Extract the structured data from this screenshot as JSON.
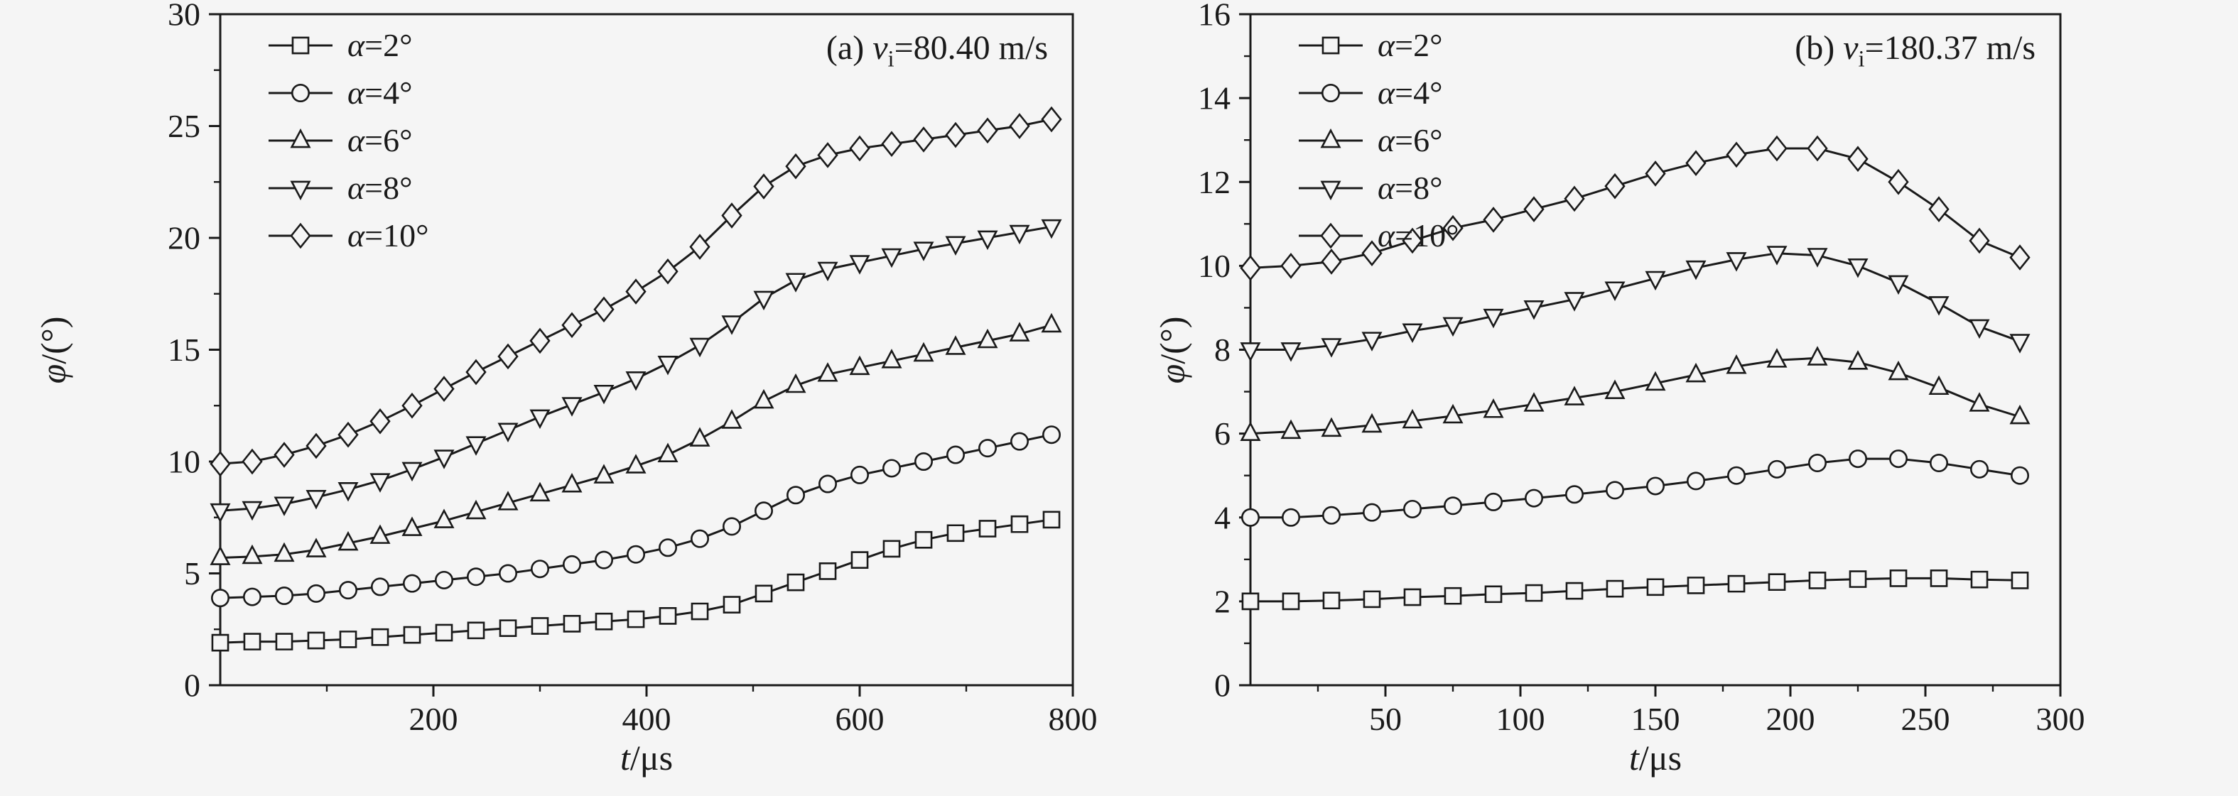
{
  "style": {
    "background": "#f5f5f5",
    "line_color": "#1a1a1a",
    "axis_color": "#1a1a1a",
    "marker_fill": "#f5f5f5"
  },
  "chart_data": [
    {
      "type": "line",
      "annotation": {
        "prefix": "(a) ",
        "var": "v",
        "sub": "i",
        "rest": "=80.40 m/s"
      },
      "xlabel": {
        "it": "t",
        "rest": "/μs"
      },
      "ylabel": {
        "it": "φ",
        "rest": "/(°)"
      },
      "xlim": [
        0,
        800
      ],
      "ylim": [
        0,
        30
      ],
      "xticks": [
        200,
        400,
        600,
        800
      ],
      "yticks": [
        0,
        5,
        10,
        15,
        20,
        25,
        30
      ],
      "xminor_step": 100,
      "yminor_step": 2.5,
      "grid": false,
      "legend_position": "top-left",
      "x": [
        0,
        30,
        60,
        90,
        120,
        150,
        180,
        210,
        240,
        270,
        300,
        330,
        360,
        390,
        420,
        450,
        480,
        510,
        540,
        570,
        600,
        630,
        660,
        690,
        720,
        750,
        780
      ],
      "series": [
        {
          "name": "α=2°",
          "marker": "square",
          "y": [
            1.9,
            1.95,
            1.95,
            2.0,
            2.05,
            2.15,
            2.25,
            2.35,
            2.45,
            2.55,
            2.65,
            2.75,
            2.85,
            2.95,
            3.1,
            3.3,
            3.6,
            4.1,
            4.6,
            5.1,
            5.6,
            6.1,
            6.5,
            6.8,
            7.0,
            7.2,
            7.4
          ]
        },
        {
          "name": "α=4°",
          "marker": "circle",
          "y": [
            3.9,
            3.95,
            4.0,
            4.1,
            4.25,
            4.4,
            4.55,
            4.7,
            4.85,
            5.0,
            5.2,
            5.4,
            5.6,
            5.85,
            6.15,
            6.55,
            7.1,
            7.8,
            8.5,
            9.0,
            9.4,
            9.7,
            10.0,
            10.3,
            10.6,
            10.9,
            11.2
          ]
        },
        {
          "name": "α=6°",
          "marker": "triangle-up",
          "y": [
            5.7,
            5.75,
            5.85,
            6.05,
            6.35,
            6.65,
            7.0,
            7.35,
            7.75,
            8.15,
            8.55,
            8.95,
            9.35,
            9.8,
            10.3,
            11.0,
            11.8,
            12.7,
            13.4,
            13.9,
            14.2,
            14.5,
            14.8,
            15.1,
            15.4,
            15.7,
            16.1
          ]
        },
        {
          "name": "α=8°",
          "marker": "triangle-down",
          "y": [
            7.8,
            7.9,
            8.1,
            8.4,
            8.75,
            9.15,
            9.65,
            10.2,
            10.8,
            11.4,
            12.0,
            12.55,
            13.1,
            13.7,
            14.4,
            15.2,
            16.2,
            17.3,
            18.1,
            18.6,
            18.9,
            19.2,
            19.5,
            19.75,
            20.0,
            20.25,
            20.5
          ]
        },
        {
          "name": "α=10°",
          "marker": "diamond",
          "y": [
            9.9,
            10.0,
            10.3,
            10.7,
            11.2,
            11.8,
            12.5,
            13.25,
            14.0,
            14.7,
            15.4,
            16.1,
            16.8,
            17.6,
            18.5,
            19.6,
            21.0,
            22.3,
            23.2,
            23.7,
            24.0,
            24.2,
            24.4,
            24.6,
            24.8,
            25.0,
            25.3
          ]
        }
      ]
    },
    {
      "type": "line",
      "annotation": {
        "prefix": "(b) ",
        "var": "v",
        "sub": "i",
        "rest": "=180.37 m/s"
      },
      "xlabel": {
        "it": "t",
        "rest": "/μs"
      },
      "ylabel": {
        "it": "φ",
        "rest": "/(°)"
      },
      "xlim": [
        0,
        300
      ],
      "ylim": [
        0,
        16
      ],
      "xticks": [
        50,
        100,
        150,
        200,
        250,
        300
      ],
      "yticks": [
        0,
        2,
        4,
        6,
        8,
        10,
        12,
        14,
        16
      ],
      "xminor_step": 25,
      "yminor_step": 1,
      "grid": false,
      "legend_position": "top-left",
      "x": [
        0,
        15,
        30,
        45,
        60,
        75,
        90,
        105,
        120,
        135,
        150,
        165,
        180,
        195,
        210,
        225,
        240,
        255,
        270,
        285
      ],
      "series": [
        {
          "name": "α=2°",
          "marker": "square",
          "y": [
            2.0,
            2.0,
            2.02,
            2.05,
            2.1,
            2.13,
            2.17,
            2.2,
            2.25,
            2.3,
            2.34,
            2.38,
            2.42,
            2.46,
            2.5,
            2.53,
            2.55,
            2.55,
            2.52,
            2.5
          ]
        },
        {
          "name": "α=4°",
          "marker": "circle",
          "y": [
            4.0,
            4.0,
            4.05,
            4.12,
            4.2,
            4.28,
            4.37,
            4.46,
            4.55,
            4.65,
            4.75,
            4.87,
            5.0,
            5.15,
            5.3,
            5.4,
            5.4,
            5.3,
            5.15,
            5.0
          ]
        },
        {
          "name": "α=6°",
          "marker": "triangle-up",
          "y": [
            6.0,
            6.05,
            6.1,
            6.2,
            6.3,
            6.42,
            6.55,
            6.7,
            6.85,
            7.0,
            7.2,
            7.4,
            7.6,
            7.75,
            7.8,
            7.7,
            7.45,
            7.1,
            6.7,
            6.4
          ]
        },
        {
          "name": "α=8°",
          "marker": "triangle-down",
          "y": [
            8.0,
            8.0,
            8.1,
            8.25,
            8.45,
            8.6,
            8.8,
            9.0,
            9.2,
            9.45,
            9.7,
            9.95,
            10.15,
            10.3,
            10.25,
            10.0,
            9.6,
            9.1,
            8.55,
            8.2
          ]
        },
        {
          "name": "α=10°",
          "marker": "diamond",
          "y": [
            9.95,
            10.0,
            10.1,
            10.3,
            10.6,
            10.9,
            11.1,
            11.35,
            11.6,
            11.9,
            12.2,
            12.45,
            12.65,
            12.8,
            12.8,
            12.55,
            12.0,
            11.35,
            10.6,
            10.2
          ]
        }
      ]
    }
  ]
}
